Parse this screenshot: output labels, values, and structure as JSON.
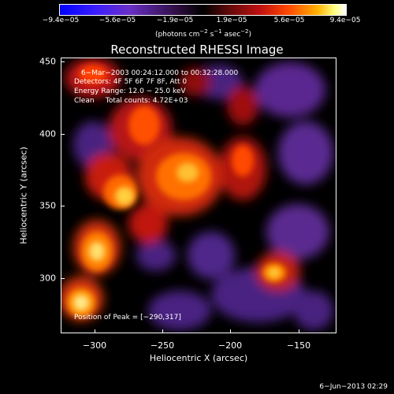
{
  "colorbar": {
    "ticks": [
      "−9.4e−05",
      "−5.6e−05",
      "−1.9e−05",
      "1.9e−05",
      "5.6e−05",
      "9.4e−05"
    ],
    "units_prefix": "(photons cm",
    "units_exp1": "−2",
    "units_mid": " s",
    "units_exp2": "−1",
    "units_mid2": " asec",
    "units_exp3": "−2",
    "units_suffix": ")"
  },
  "title": "Reconstructed RHESSI Image",
  "info": {
    "time": "6−Mar−2003 00:24:12.000 to 00:32:28.000",
    "detectors": "Detectors: 4F 5F 6F 7F 8F, Att 0",
    "energy": "Energy Range: 12.0 − 25.0 keV",
    "clean": "Clean     Total counts: 4.72E+03",
    "peak": "Position of Peak = [−290,317]"
  },
  "axes": {
    "xlabel": "Heliocentric X (arcsec)",
    "ylabel": "Heliocentric Y (arcsec)",
    "xticks": [
      "−300",
      "−250",
      "−200",
      "−150"
    ],
    "yticks": [
      "450",
      "400",
      "350",
      "300"
    ]
  },
  "footer": "6−Jun−2013 02:29",
  "colors": {
    "background": "#000000",
    "foreground": "#ffffff"
  }
}
